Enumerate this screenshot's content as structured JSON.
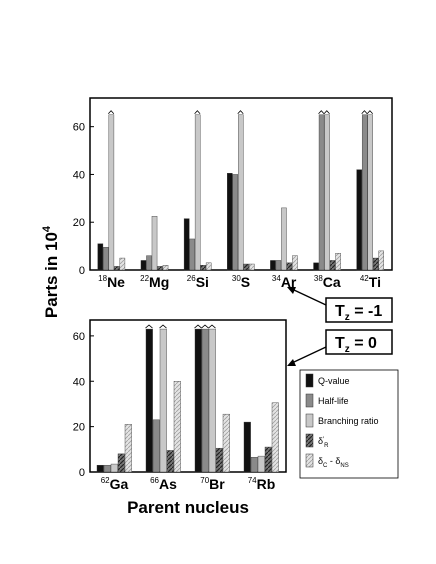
{
  "chart_data": [
    {
      "type": "bar",
      "panel": "top",
      "categories": [
        {
          "mass": "18",
          "symbol": "Ne"
        },
        {
          "mass": "22",
          "symbol": "Mg"
        },
        {
          "mass": "26",
          "symbol": "Si"
        },
        {
          "mass": "30",
          "symbol": "S"
        },
        {
          "mass": "34",
          "symbol": "Ar"
        },
        {
          "mass": "38",
          "symbol": "Ca"
        },
        {
          "mass": "42",
          "symbol": "Ti"
        }
      ],
      "series": [
        {
          "values": [
            11,
            4,
            21.5,
            40.5,
            4,
            3,
            42
          ]
        },
        {
          "values": [
            9.5,
            6,
            13,
            40,
            4,
            65,
            65
          ]
        },
        {
          "values": [
            65,
            22.5,
            65,
            65,
            26,
            65,
            65
          ]
        },
        {
          "values": [
            1.5,
            1.5,
            2,
            2.5,
            3,
            4,
            5
          ]
        },
        {
          "values": [
            5,
            2,
            3,
            2.5,
            6,
            7,
            8
          ]
        }
      ],
      "truncated_above": 65,
      "ylim": [
        0,
        72
      ],
      "yticks": [
        0,
        20,
        40,
        60
      ]
    },
    {
      "type": "bar",
      "panel": "bottom",
      "categories": [
        {
          "mass": "62",
          "symbol": "Ga"
        },
        {
          "mass": "66",
          "symbol": "As"
        },
        {
          "mass": "70",
          "symbol": "Br"
        },
        {
          "mass": "74",
          "symbol": "Rb"
        }
      ],
      "series": [
        {
          "values": [
            3,
            63,
            63,
            22
          ]
        },
        {
          "values": [
            3,
            23,
            63,
            6.5
          ]
        },
        {
          "values": [
            3.5,
            63,
            63,
            7
          ]
        },
        {
          "values": [
            8,
            9.5,
            10.5,
            11
          ]
        },
        {
          "values": [
            21,
            40,
            25.5,
            30.5
          ]
        }
      ],
      "truncated_above": 63,
      "ylim": [
        0,
        67
      ],
      "yticks": [
        0,
        20,
        40,
        60
      ]
    }
  ],
  "axes": {
    "ylabel_main": "Parts in 10",
    "ylabel_exp": "4",
    "xlabel": "Parent nucleus"
  },
  "annotations": {
    "tz_minus1": {
      "base": "T",
      "sub": "z",
      "rest": " = -1"
    },
    "tz_zero": {
      "base": "T",
      "sub": "z",
      "rest": " = 0"
    }
  },
  "legend": {
    "items": [
      {
        "label": "Q-value"
      },
      {
        "label": "Half-life"
      },
      {
        "label": "Branching ratio"
      },
      {
        "label": "δ",
        "sub": "R",
        "sup": "′"
      },
      {
        "label": "δ",
        "sub": "C",
        "rest": " - δ",
        "sub2": "NS"
      }
    ]
  },
  "colors": {
    "q_value": "#111111",
    "half_life": "#8a8a8a",
    "branching": "#c8c8c8",
    "delta_r": "#555555",
    "delta_c": "#d6d6d6"
  }
}
